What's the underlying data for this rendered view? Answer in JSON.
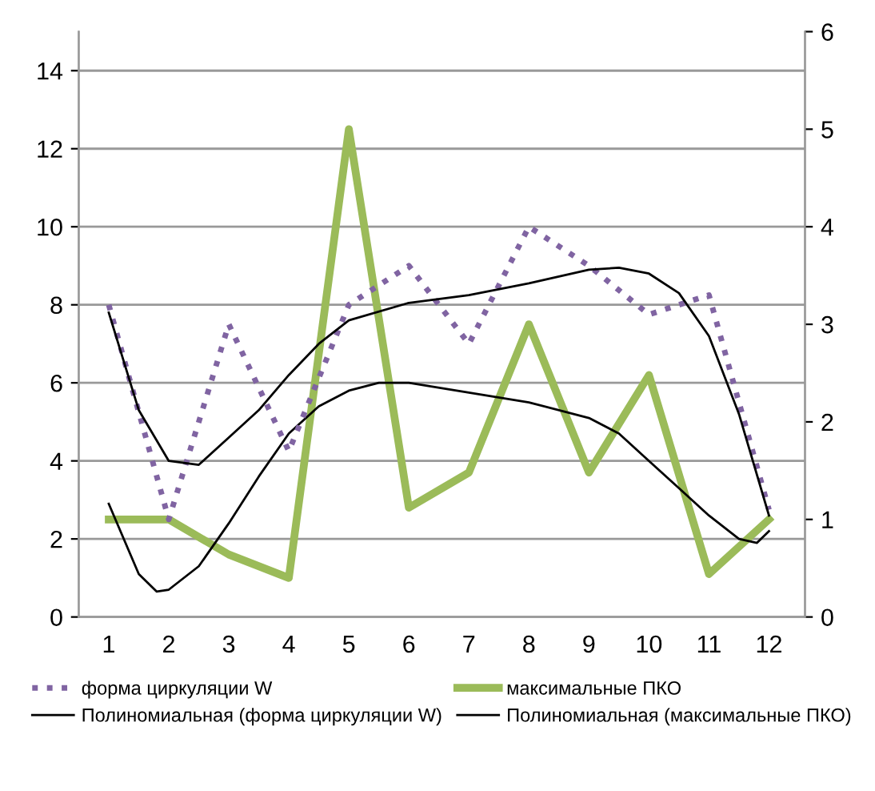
{
  "chart_data": {
    "type": "line",
    "x": [
      1,
      2,
      3,
      4,
      5,
      6,
      7,
      8,
      9,
      10,
      11,
      12
    ],
    "xlim": [
      0.5,
      12.6
    ],
    "xticks": [
      1,
      2,
      3,
      4,
      5,
      6,
      7,
      8,
      9,
      10,
      11,
      12
    ],
    "ylim": [
      0,
      15
    ],
    "yticks": [
      0,
      2,
      4,
      6,
      8,
      10,
      12,
      14
    ],
    "y2lim": [
      0,
      6
    ],
    "y2ticks": [
      0,
      1,
      2,
      3,
      4,
      5,
      6
    ],
    "grid": "y",
    "legend": "bottom",
    "series": [
      {
        "name": "форма циркуляции W",
        "color": "#8064a2",
        "axis": "y2",
        "line_style": "dotted",
        "values": [
          3.2,
          1.0,
          3.0,
          1.7,
          3.2,
          3.6,
          2.8,
          4.0,
          3.6,
          3.1,
          3.3,
          1.1
        ]
      },
      {
        "name": "максимальные ПКО",
        "color": "#9bbb59",
        "values": [
          2.5,
          2.5,
          1.6,
          1.0,
          12.5,
          2.8,
          3.7,
          7.5,
          3.7,
          6.2,
          1.1,
          2.5
        ]
      },
      {
        "name": "Полиномиальная (форма циркуляции W)",
        "color": "#000000",
        "axis": "y2",
        "x": [
          1,
          1.5,
          2,
          2.5,
          3,
          3.5,
          4,
          4.5,
          5,
          6,
          7,
          8,
          9,
          9.5,
          10,
          10.5,
          11,
          11.5,
          12
        ],
        "values": [
          3.12,
          2.12,
          1.6,
          1.56,
          1.84,
          2.12,
          2.48,
          2.8,
          3.04,
          3.22,
          3.3,
          3.42,
          3.56,
          3.58,
          3.52,
          3.32,
          2.88,
          2.08,
          1.04
        ]
      },
      {
        "name": "Полиномиальная (максимальные ПКО)",
        "color": "#000000",
        "x": [
          1,
          1.5,
          1.8,
          2,
          2.5,
          3,
          3.5,
          4,
          4.5,
          5,
          5.5,
          6,
          7,
          8,
          9,
          9.5,
          10,
          10.5,
          11,
          11.5,
          11.8,
          12
        ],
        "values": [
          2.9,
          1.1,
          0.65,
          0.7,
          1.3,
          2.4,
          3.6,
          4.7,
          5.4,
          5.8,
          6.0,
          6.0,
          5.75,
          5.5,
          5.1,
          4.7,
          4.0,
          3.3,
          2.6,
          2.0,
          1.9,
          2.2
        ]
      }
    ]
  }
}
